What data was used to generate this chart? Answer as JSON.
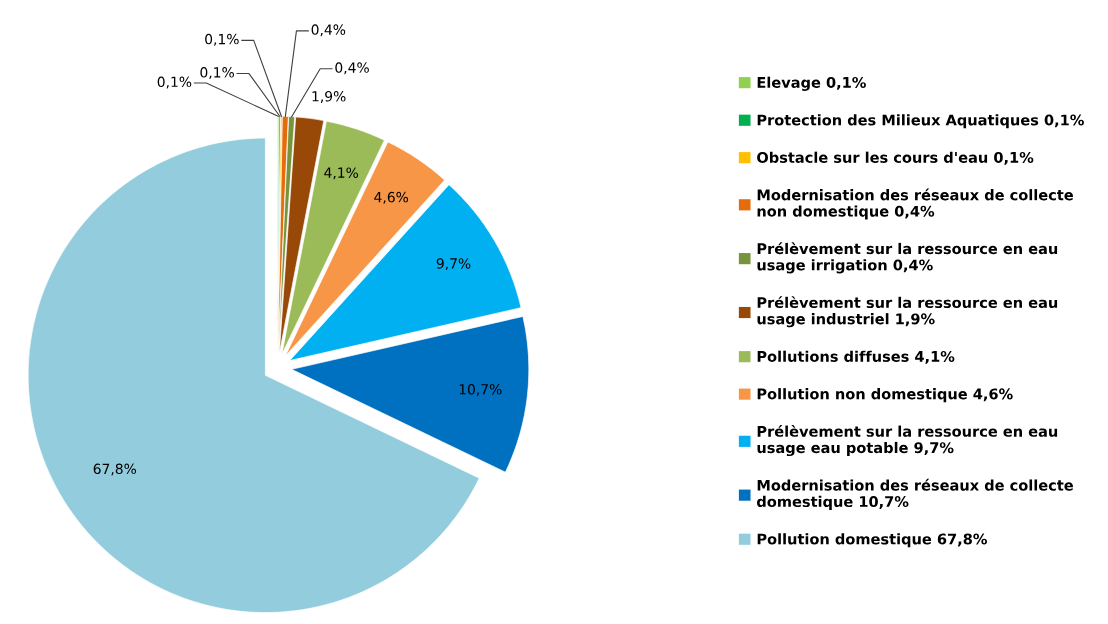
{
  "chart_data": {
    "type": "pie",
    "categories": [
      "Elevage",
      "Protection des Milieux Aquatiques",
      "Obstacle sur les cours d'eau",
      "Modernisation des réseaux de collecte non domestique",
      "Prélèvement sur la ressource en eau usage irrigation",
      "Prélèvement sur la ressource en eau usage industriel",
      "Pollutions diffuses",
      "Pollution non domestique",
      "Prélèvement sur la ressource en eau usage eau potable",
      "Modernisation des réseaux de collecte domestique",
      "Pollution domestique"
    ],
    "values": [
      0.1,
      0.1,
      0.1,
      0.4,
      0.4,
      1.9,
      4.1,
      4.6,
      9.7,
      10.7,
      67.8
    ],
    "value_labels": [
      "0,1%",
      "0,1%",
      "0,1%",
      "0,4%",
      "0,4%",
      "1,9%",
      "4,1%",
      "4,6%",
      "9,7%",
      "10,7%",
      "67,8%"
    ],
    "colors": [
      "#92d050",
      "#00b050",
      "#ffc000",
      "#e46c0a",
      "#77933c",
      "#984807",
      "#9bbb59",
      "#f79646",
      "#00b0f0",
      "#0070c0",
      "#93cddd"
    ],
    "legend": "right"
  }
}
